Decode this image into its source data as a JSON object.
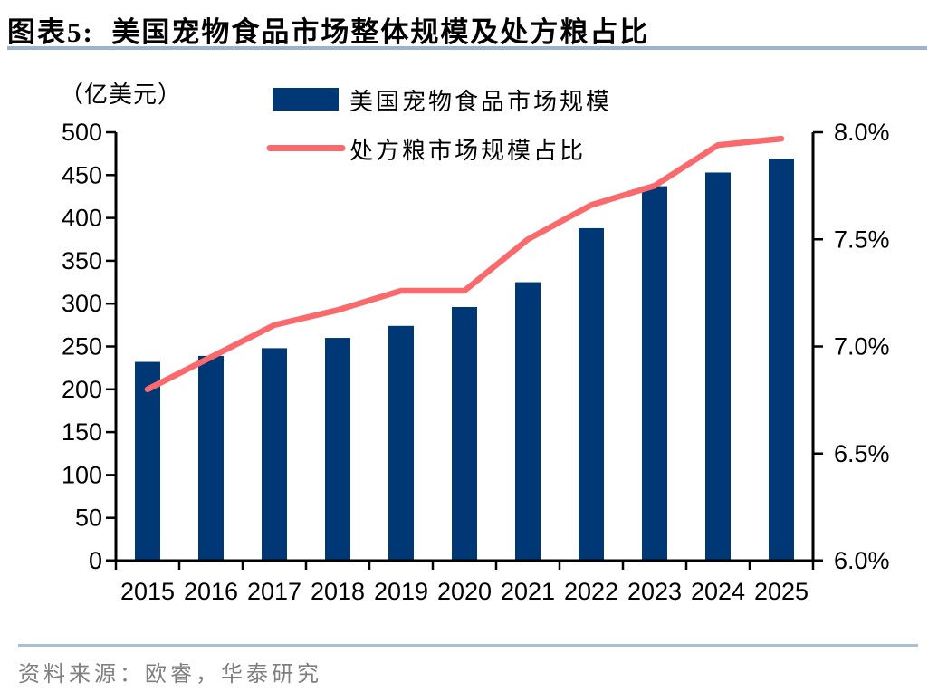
{
  "figure": {
    "title": "图表5:  美国宠物食品市场整体规模及处方粮占比",
    "source": "资料来源：欧睿，华泰研究"
  },
  "colors": {
    "bar": "#003876",
    "line": "#FA6A6D",
    "axis": "#000000",
    "rule_top": "#9BB3CD",
    "rule_bottom": "#A9BFD6",
    "source_text": "#7F7F7F",
    "background": "#FFFFFF"
  },
  "chart_data": {
    "type": "combo-bar-line",
    "title": "美国宠物食品市场整体规模及处方粮占比",
    "categories": [
      "2015",
      "2016",
      "2017",
      "2018",
      "2019",
      "2020",
      "2021",
      "2022",
      "2023",
      "2024",
      "2025"
    ],
    "series": [
      {
        "name": "美国宠物食品市场规模",
        "type": "bar",
        "axis": "left",
        "unit": "亿美元",
        "color": "#003876",
        "values": [
          232,
          239,
          248,
          260,
          274,
          296,
          325,
          388,
          437,
          453,
          469
        ]
      },
      {
        "name": "处方粮市场规模占比",
        "type": "line",
        "axis": "right",
        "unit": "%",
        "color": "#FA6A6D",
        "values": [
          6.8,
          6.95,
          7.1,
          7.17,
          7.26,
          7.26,
          7.5,
          7.66,
          7.75,
          7.94,
          7.97
        ]
      }
    ],
    "left_axis": {
      "label": "（亿美元）",
      "min": 0,
      "max": 500,
      "step": 50
    },
    "right_axis": {
      "min": 6.0,
      "max": 8.0,
      "step": 0.5,
      "suffix": "%",
      "decimals": 1
    },
    "legend_position": "top-center",
    "grid": false
  }
}
